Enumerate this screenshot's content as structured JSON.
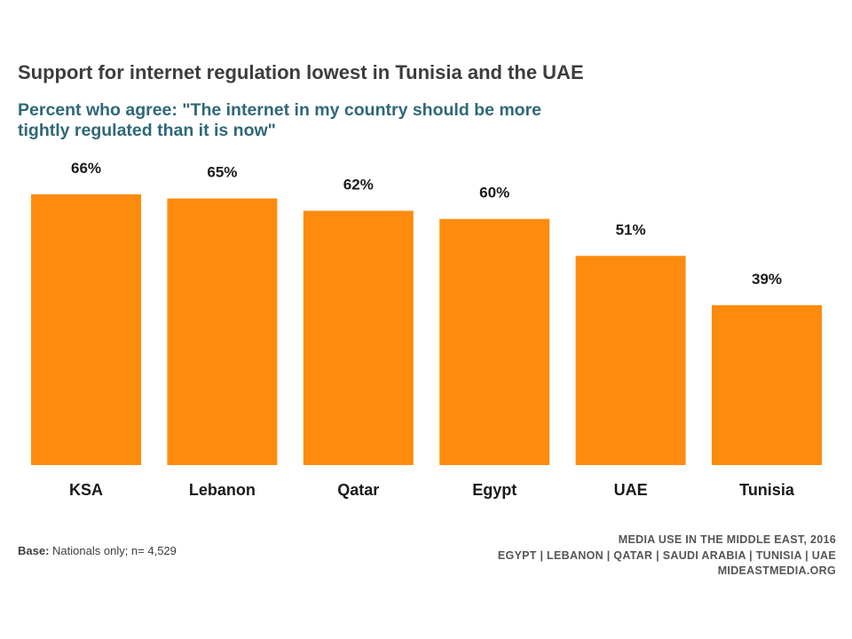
{
  "title": "Support for internet regulation lowest in Tunisia and the UAE",
  "subtitle": "Percent who agree: \"The internet in my country should be more tightly regulated than it is now\"",
  "base_note": {
    "label": "Base:",
    "text": "Nationals only; n= 4,529"
  },
  "source": {
    "line1": "MEDIA USE IN THE MIDDLE EAST, 2016",
    "line2": "EGYPT | LEBANON | QATAR | SAUDI ARABIA | TUNISIA | UAE",
    "line3": "MIDEASTMEDIA.ORG"
  },
  "colors": {
    "bar": "#fd8b0d",
    "title": "#3d3d3d",
    "subtitle": "#2e6878"
  },
  "chart_data": {
    "type": "bar",
    "title": "Support for internet regulation lowest in Tunisia and the UAE",
    "subtitle": "Percent who agree: \"The internet in my country should be more tightly regulated than it is now\"",
    "xlabel": "",
    "ylabel": "",
    "categories": [
      "KSA",
      "Lebanon",
      "Qatar",
      "Egypt",
      "UAE",
      "Tunisia"
    ],
    "values": [
      66,
      65,
      62,
      60,
      51,
      39
    ],
    "data_labels": [
      "66%",
      "65%",
      "62%",
      "60%",
      "51%",
      "39%"
    ],
    "ylim": [
      0,
      66
    ],
    "grid": false,
    "legend": "none"
  }
}
